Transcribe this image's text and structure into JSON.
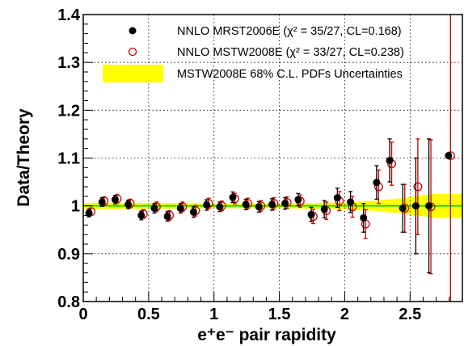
{
  "chart_data": {
    "type": "scatter",
    "xlabel": "e⁺e⁻ pair rapidity",
    "ylabel": "Data/Theory",
    "xlim": [
      0,
      2.9
    ],
    "ylim": [
      0.8,
      1.4
    ],
    "x_ticks": [
      "0",
      "0.5",
      "1",
      "1.5",
      "2",
      "2.5"
    ],
    "y_ticks": [
      "0.8",
      "0.9",
      "1",
      "1.1",
      "1.2",
      "1.3",
      "1.4"
    ],
    "grid": "dotted",
    "legend_position": "top-right",
    "reference_line": 1.0,
    "colors": {
      "mrst": "#000000",
      "mstw": "#cc0000",
      "band": "#ffff00",
      "reference": "#00cc00"
    },
    "legend": [
      {
        "label": "NNLO MRST2006E (χ² = 35/27, CL=0.168)",
        "marker": "filled-circle",
        "color": "#000000"
      },
      {
        "label": "NNLO MSTW2008E (χ² = 33/27, CL=0.238)",
        "marker": "open-circle",
        "color": "#cc0000"
      },
      {
        "label": "MSTW2008E 68% C.L. PDFs Uncertainties",
        "marker": "band",
        "color": "#ffff00"
      }
    ],
    "series": [
      {
        "name": "NNLO MRST2006E",
        "x": [
          0.05,
          0.15,
          0.25,
          0.35,
          0.45,
          0.55,
          0.65,
          0.75,
          0.85,
          0.95,
          1.05,
          1.15,
          1.25,
          1.35,
          1.45,
          1.55,
          1.65,
          1.75,
          1.85,
          1.95,
          2.05,
          2.15,
          2.25,
          2.35,
          2.45,
          2.55,
          2.65,
          2.8
        ],
        "y": [
          0.985,
          1.008,
          1.013,
          1.003,
          0.98,
          0.995,
          0.978,
          0.995,
          0.987,
          1.002,
          0.998,
          1.018,
          1.003,
          0.998,
          1.003,
          1.005,
          1.013,
          0.982,
          0.993,
          1.017,
          1.008,
          0.975,
          1.049,
          1.095,
          0.995,
          1.0,
          1.0,
          1.105
        ],
        "err": [
          0.008,
          0.009,
          0.009,
          0.009,
          0.009,
          0.01,
          0.01,
          0.01,
          0.011,
          0.011,
          0.01,
          0.011,
          0.011,
          0.011,
          0.012,
          0.012,
          0.013,
          0.015,
          0.018,
          0.02,
          0.022,
          0.03,
          0.035,
          0.045,
          0.05,
          0.1,
          0.14,
          0.0
        ]
      },
      {
        "name": "NNLO MSTW2008E",
        "x": [
          0.05,
          0.15,
          0.25,
          0.35,
          0.45,
          0.55,
          0.65,
          0.75,
          0.85,
          0.95,
          1.05,
          1.15,
          1.25,
          1.35,
          1.45,
          1.55,
          1.65,
          1.75,
          1.85,
          1.95,
          2.05,
          2.15,
          2.25,
          2.35,
          2.45,
          2.55,
          2.65,
          2.8
        ],
        "y": [
          0.988,
          1.01,
          1.015,
          1.005,
          0.983,
          0.998,
          0.98,
          0.998,
          0.99,
          1.005,
          1.0,
          1.015,
          1.005,
          1.0,
          1.005,
          1.007,
          1.01,
          0.978,
          0.99,
          1.01,
          0.998,
          0.962,
          1.04,
          1.088,
          0.995,
          1.04,
          0.998,
          1.105
        ],
        "err": [
          0.008,
          0.009,
          0.009,
          0.009,
          0.009,
          0.01,
          0.01,
          0.01,
          0.011,
          0.011,
          0.01,
          0.011,
          0.011,
          0.011,
          0.012,
          0.012,
          0.013,
          0.015,
          0.018,
          0.02,
          0.022,
          0.03,
          0.035,
          0.045,
          0.05,
          0.1,
          0.14,
          0.8
        ]
      }
    ],
    "uncertainty_band": {
      "x": [
        0.0,
        0.5,
        1.0,
        1.5,
        1.8,
        2.0,
        2.2,
        2.4,
        2.5,
        2.6,
        2.7,
        2.9
      ],
      "lower": [
        0.993,
        0.994,
        0.995,
        0.995,
        0.994,
        0.993,
        0.99,
        0.985,
        0.982,
        0.978,
        0.975,
        0.975
      ],
      "upper": [
        1.006,
        1.006,
        1.005,
        1.005,
        1.006,
        1.007,
        1.01,
        1.015,
        1.018,
        1.022,
        1.025,
        1.025
      ]
    }
  }
}
